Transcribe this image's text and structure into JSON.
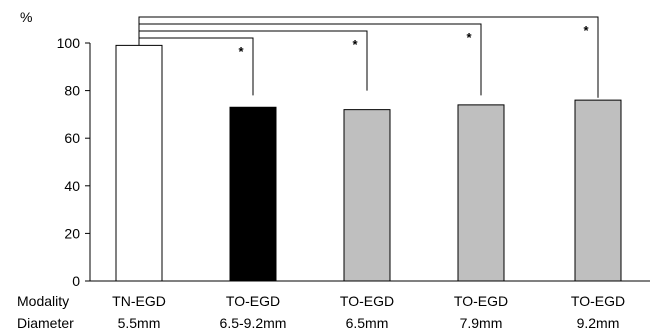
{
  "chart_data": {
    "type": "bar",
    "ylabel": "%",
    "ylim": [
      0,
      100
    ],
    "yticks": [
      0,
      20,
      40,
      60,
      80,
      100
    ],
    "row_labels": [
      "Modality",
      "Diameter"
    ],
    "categories": [
      {
        "modality": "TN-EGD",
        "diameter": "5.5mm"
      },
      {
        "modality": "TO-EGD",
        "diameter": "6.5-9.2mm"
      },
      {
        "modality": "TO-EGD",
        "diameter": "6.5mm"
      },
      {
        "modality": "TO-EGD",
        "diameter": "7.9mm"
      },
      {
        "modality": "TO-EGD",
        "diameter": "9.2mm"
      }
    ],
    "values": [
      99,
      73,
      72,
      74,
      76
    ],
    "bar_colors": [
      "#ffffff",
      "#000000",
      "#bfbfbf",
      "#bfbfbf",
      "#bfbfbf"
    ],
    "significance": [
      {
        "from": 0,
        "to": 1,
        "label": "*"
      },
      {
        "from": 0,
        "to": 2,
        "label": "*"
      },
      {
        "from": 0,
        "to": 3,
        "label": "*"
      },
      {
        "from": 0,
        "to": 4,
        "label": "*"
      }
    ],
    "grid": false
  }
}
